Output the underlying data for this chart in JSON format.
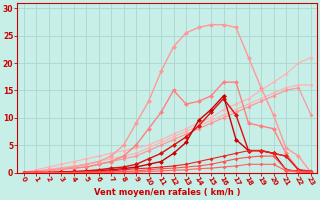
{
  "title": "",
  "xlabel": "Vent moyen/en rafales ( km/h )",
  "ylabel": "",
  "xlim": [
    -0.5,
    23.5
  ],
  "ylim": [
    0,
    31
  ],
  "xticks": [
    0,
    1,
    2,
    3,
    4,
    5,
    6,
    7,
    8,
    9,
    10,
    11,
    12,
    13,
    14,
    15,
    16,
    17,
    18,
    19,
    20,
    21,
    22,
    23
  ],
  "yticks": [
    0,
    5,
    10,
    15,
    20,
    25,
    30
  ],
  "bg_color": "#c8eee8",
  "grid_color": "#a8d8d0",
  "axis_color": "#cc0000",
  "tick_color": "#cc0000",
  "label_color": "#cc0000",
  "lines": [
    {
      "x": [
        0,
        1,
        2,
        3,
        4,
        5,
        6,
        7,
        8,
        9,
        10,
        11,
        12,
        13,
        14,
        15,
        16,
        17,
        18,
        19,
        20,
        21,
        22,
        23
      ],
      "y": [
        0,
        0.5,
        1.0,
        1.5,
        2.0,
        2.5,
        3.0,
        3.5,
        4.0,
        4.5,
        5.0,
        6.0,
        7.0,
        8.0,
        9.0,
        10.0,
        11.5,
        12.5,
        13.5,
        15.0,
        16.5,
        18.0,
        20.0,
        21.0
      ],
      "color": "#ffb0b0",
      "lw": 0.8,
      "marker": "D",
      "ms": 2.0
    },
    {
      "x": [
        0,
        1,
        2,
        3,
        4,
        5,
        6,
        7,
        8,
        9,
        10,
        11,
        12,
        13,
        14,
        15,
        16,
        17,
        18,
        19,
        20,
        21,
        22,
        23
      ],
      "y": [
        0,
        0.3,
        0.6,
        0.9,
        1.2,
        1.5,
        2.0,
        2.5,
        3.0,
        3.5,
        4.5,
        5.5,
        6.5,
        7.5,
        8.5,
        9.5,
        10.5,
        11.5,
        12.5,
        13.5,
        14.5,
        15.5,
        16.0,
        16.0
      ],
      "color": "#ffb0b0",
      "lw": 0.8,
      "marker": "D",
      "ms": 2.0
    },
    {
      "x": [
        0,
        1,
        2,
        3,
        4,
        5,
        6,
        7,
        8,
        9,
        10,
        11,
        12,
        13,
        14,
        15,
        16,
        17,
        18,
        19,
        20,
        21,
        22,
        23
      ],
      "y": [
        0,
        0.2,
        0.4,
        0.6,
        0.8,
        1.0,
        1.5,
        2.0,
        2.5,
        3.0,
        4.0,
        5.0,
        6.0,
        7.0,
        8.0,
        9.0,
        10.0,
        11.0,
        12.0,
        13.0,
        14.0,
        15.0,
        15.5,
        10.5
      ],
      "color": "#ff9090",
      "lw": 0.8,
      "marker": "D",
      "ms": 2.0
    },
    {
      "x": [
        0,
        1,
        2,
        3,
        4,
        5,
        6,
        7,
        8,
        9,
        10,
        11,
        12,
        13,
        14,
        15,
        16,
        17,
        18,
        19,
        20,
        21,
        22,
        23
      ],
      "y": [
        0,
        0.2,
        0.4,
        0.6,
        0.8,
        1.0,
        1.5,
        2.0,
        3.0,
        5.0,
        8.0,
        11.0,
        15.0,
        12.5,
        13.0,
        14.0,
        16.5,
        16.5,
        9.0,
        8.5,
        8.0,
        3.5,
        0.5,
        0
      ],
      "color": "#ff8080",
      "lw": 1.0,
      "marker": "D",
      "ms": 2.5
    },
    {
      "x": [
        0,
        1,
        2,
        3,
        4,
        5,
        6,
        7,
        8,
        9,
        10,
        11,
        12,
        13,
        14,
        15,
        16,
        17,
        18,
        19,
        20,
        21,
        22,
        23
      ],
      "y": [
        0,
        0.2,
        0.4,
        0.7,
        1.0,
        1.5,
        2.0,
        3.0,
        5.0,
        9.0,
        13.0,
        18.5,
        23.0,
        25.5,
        26.5,
        27.0,
        27.0,
        26.5,
        21.0,
        15.5,
        10.5,
        4.5,
        3.0,
        0
      ],
      "color": "#ff9898",
      "lw": 1.0,
      "marker": "D",
      "ms": 2.5
    },
    {
      "x": [
        0,
        1,
        2,
        3,
        4,
        5,
        6,
        7,
        8,
        9,
        10,
        11,
        12,
        13,
        14,
        15,
        16,
        17,
        18,
        19,
        20,
        21,
        22,
        23
      ],
      "y": [
        0,
        0,
        0,
        0.1,
        0.2,
        0.3,
        0.5,
        0.8,
        1.0,
        1.5,
        2.5,
        3.5,
        5.0,
        6.5,
        8.5,
        11.0,
        13.5,
        10.5,
        4.0,
        4.0,
        3.5,
        3.0,
        0.5,
        0
      ],
      "color": "#dd1010",
      "lw": 1.0,
      "marker": "D",
      "ms": 2.5
    },
    {
      "x": [
        0,
        1,
        2,
        3,
        4,
        5,
        6,
        7,
        8,
        9,
        10,
        11,
        12,
        13,
        14,
        15,
        16,
        17,
        18,
        19,
        20,
        21,
        22,
        23
      ],
      "y": [
        0,
        0,
        0,
        0.1,
        0.1,
        0.2,
        0.3,
        0.5,
        0.7,
        1.0,
        1.5,
        2.0,
        3.5,
        5.5,
        9.5,
        11.5,
        14.0,
        6.0,
        4.0,
        4.0,
        3.5,
        0.5,
        0.2,
        0
      ],
      "color": "#cc0000",
      "lw": 1.0,
      "marker": "D",
      "ms": 2.5
    },
    {
      "x": [
        0,
        1,
        2,
        3,
        4,
        5,
        6,
        7,
        8,
        9,
        10,
        11,
        12,
        13,
        14,
        15,
        16,
        17,
        18,
        19,
        20,
        21,
        22,
        23
      ],
      "y": [
        0,
        0,
        0,
        0,
        0.1,
        0.1,
        0.2,
        0.3,
        0.5,
        0.7,
        0.8,
        1.0,
        1.2,
        1.5,
        2.0,
        2.5,
        3.0,
        3.5,
        4.0,
        4.0,
        3.5,
        3.0,
        0.5,
        0.3
      ],
      "color": "#ee2020",
      "lw": 0.8,
      "marker": "D",
      "ms": 2.0
    },
    {
      "x": [
        0,
        1,
        2,
        3,
        4,
        5,
        6,
        7,
        8,
        9,
        10,
        11,
        12,
        13,
        14,
        15,
        16,
        17,
        18,
        19,
        20,
        21,
        22,
        23
      ],
      "y": [
        0,
        0,
        0,
        0,
        0,
        0.1,
        0.1,
        0.1,
        0.2,
        0.3,
        0.5,
        0.7,
        0.8,
        1.0,
        1.2,
        1.5,
        2.0,
        2.5,
        2.8,
        3.0,
        3.0,
        0.5,
        0.2,
        0.1
      ],
      "color": "#ff5050",
      "lw": 0.8,
      "marker": "D",
      "ms": 2.0
    },
    {
      "x": [
        0,
        1,
        2,
        3,
        4,
        5,
        6,
        7,
        8,
        9,
        10,
        11,
        12,
        13,
        14,
        15,
        16,
        17,
        18,
        19,
        20,
        21,
        22,
        23
      ],
      "y": [
        0,
        0,
        0,
        0,
        0,
        0,
        0,
        0.1,
        0.1,
        0.1,
        0.2,
        0.3,
        0.4,
        0.5,
        0.7,
        0.8,
        1.0,
        1.2,
        1.5,
        1.5,
        1.5,
        0.3,
        0.1,
        0
      ],
      "color": "#ff6060",
      "lw": 0.8,
      "marker": "D",
      "ms": 2.0
    }
  ]
}
